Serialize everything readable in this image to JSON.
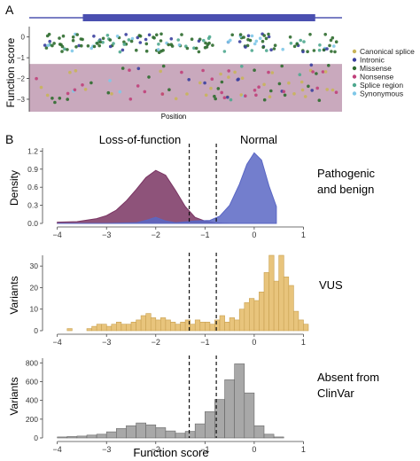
{
  "panels": {
    "a_letter": "A",
    "b_letter": "B"
  },
  "colors": {
    "canonical_splice": "#c9b45a",
    "intronic": "#3a3f9e",
    "missense": "#2e6b2e",
    "nonsense": "#c0407a",
    "splice_region": "#4fa88f",
    "synonymous": "#7fc8e8",
    "lof_fill": "#7a3563",
    "normal_fill": "#5a67c4",
    "vus_fill": "#e8c47c",
    "absent_fill": "#a8a8a8",
    "lof_band": "#c9a9bd",
    "protein_bar": "#4a4fb0",
    "protein_line": "#7a7fc4"
  },
  "chart_data": [
    {
      "type": "scatter",
      "panel": "A",
      "ylabel": "Function score",
      "xlabel": "Position",
      "yticks": [
        0,
        -1,
        -2,
        -3
      ],
      "ylim": [
        -3.6,
        0.5
      ],
      "xlim": [
        0,
        350
      ],
      "domain_bar": [
        60,
        320
      ],
      "shaded_region": [
        -3.6,
        -1.3
      ],
      "legend": [
        {
          "label": "Canonical splice",
          "color_key": "canonical_splice"
        },
        {
          "label": "Intronic",
          "color_key": "intronic"
        },
        {
          "label": "Missense",
          "color_key": "missense"
        },
        {
          "label": "Nonsense",
          "color_key": "nonsense"
        },
        {
          "label": "Splice region",
          "color_key": "splice_region"
        },
        {
          "label": "Synonymous",
          "color_key": "synonymous"
        }
      ],
      "legend_position": "right"
    },
    {
      "type": "area",
      "panel": "B1",
      "ylabel": "Density",
      "side_label": "Pathogenic\nand benign",
      "region_labels": [
        "Loss-of-function",
        "Normal"
      ],
      "xlim": [
        -4.3,
        1.1
      ],
      "ylim": [
        0,
        1.25
      ],
      "xticks": [
        -4,
        -3,
        -2,
        -1,
        0,
        1
      ],
      "yticks": [
        0.0,
        0.3,
        0.6,
        0.9,
        1.2
      ],
      "ytick_labels": [
        "0.0",
        "0.3",
        "0.6",
        "0.9",
        "1.2"
      ],
      "thresholds": [
        -1.32,
        -0.77
      ],
      "series": [
        {
          "color_key": "lof_fill",
          "x": [
            -4.0,
            -3.6,
            -3.2,
            -3.0,
            -2.8,
            -2.6,
            -2.4,
            -2.2,
            -2.0,
            -1.8,
            -1.6,
            -1.4,
            -1.2,
            -1.0,
            -0.8,
            -0.5,
            0.0,
            0.4
          ],
          "y": [
            0.02,
            0.03,
            0.08,
            0.13,
            0.22,
            0.37,
            0.56,
            0.76,
            0.88,
            0.8,
            0.55,
            0.28,
            0.1,
            0.04,
            0.01,
            0.0,
            0.0,
            0.0
          ]
        },
        {
          "color_key": "normal_fill",
          "x": [
            -4.0,
            -3.0,
            -2.4,
            -2.2,
            -2.0,
            -1.8,
            -1.6,
            -1.2,
            -0.9,
            -0.7,
            -0.5,
            -0.3,
            -0.15,
            0.0,
            0.15,
            0.3,
            0.45
          ],
          "y": [
            0.0,
            0.0,
            0.01,
            0.05,
            0.1,
            0.04,
            0.01,
            0.04,
            0.05,
            0.12,
            0.3,
            0.65,
            0.98,
            1.17,
            1.05,
            0.62,
            0.28
          ]
        }
      ]
    },
    {
      "type": "bar",
      "panel": "B2",
      "ylabel": "Variants",
      "side_label": "VUS",
      "xlim": [
        -4.3,
        1.1
      ],
      "ylim": [
        0,
        35
      ],
      "xticks": [
        -4,
        -3,
        -2,
        -1,
        0,
        1
      ],
      "yticks": [
        0,
        10,
        20,
        30
      ],
      "thresholds": [
        -1.32,
        -0.77
      ],
      "bin_width": 0.1,
      "bin_start": -3.8,
      "counts": [
        1,
        0,
        0,
        0,
        1,
        2,
        3,
        3,
        2,
        3,
        4,
        3,
        3,
        4,
        5,
        7,
        8,
        6,
        5,
        6,
        5,
        4,
        3,
        4,
        5,
        3,
        5,
        4,
        4,
        3,
        5,
        7,
        4,
        6,
        5,
        10,
        13,
        15,
        14,
        18,
        27,
        35,
        23,
        35,
        25,
        21,
        9,
        5,
        3
      ]
    },
    {
      "type": "bar",
      "panel": "B3",
      "ylabel": "Variants",
      "xlabel": "Function score",
      "side_label": "Absent from\nClinVar",
      "xlim": [
        -4.3,
        1.1
      ],
      "ylim": [
        0,
        850
      ],
      "xticks": [
        -4,
        -3,
        -2,
        -1,
        0,
        1
      ],
      "yticks": [
        0,
        200,
        400,
        600,
        800
      ],
      "thresholds": [
        -1.32,
        -0.77
      ],
      "bin_width": 0.2,
      "bin_start": -4.0,
      "counts": [
        10,
        15,
        20,
        30,
        40,
        65,
        100,
        130,
        160,
        140,
        110,
        75,
        50,
        70,
        150,
        280,
        410,
        620,
        790,
        480,
        130,
        40,
        10
      ]
    }
  ]
}
